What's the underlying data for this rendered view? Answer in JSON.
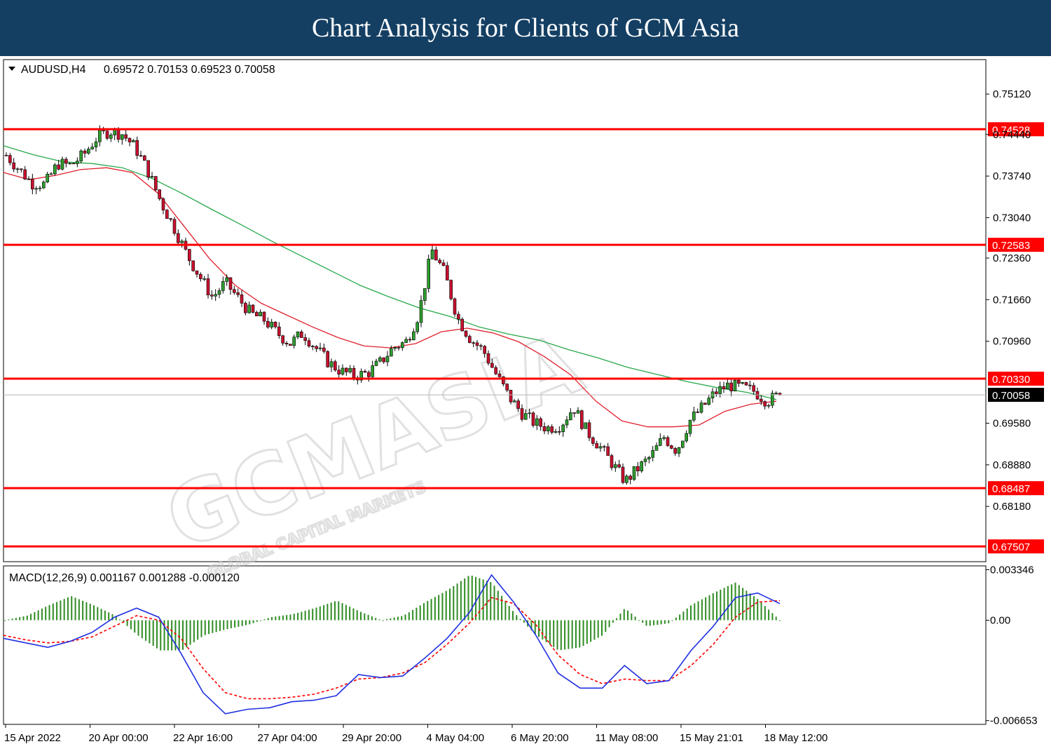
{
  "banner_title": "Chart Analysis for Clients of GCM Asia",
  "chart_data": [
    {
      "type": "candlestick",
      "title": "AUDUSD,H4",
      "ohlc_readout": "0.69572 0.70153 0.69523 0.70058",
      "ylim": [
        0.6725,
        0.757
      ],
      "ytick_labels": [
        "0.75120",
        "0.74440",
        "0.73740",
        "0.73040",
        "0.72360",
        "0.71660",
        "0.70960",
        "0.69580",
        "0.68880",
        "0.68180"
      ],
      "ytick_values": [
        0.7512,
        0.7444,
        0.7374,
        0.7304,
        0.7236,
        0.7166,
        0.7096,
        0.6958,
        0.6888,
        0.6818
      ],
      "xtick_labels": [
        "15 Apr 2022",
        "20 Apr 00:00",
        "22 Apr 16:00",
        "27 Apr 04:00",
        "29 Apr 20:00",
        "4 May 04:00",
        "6 May 20:00",
        "11 May 08:00",
        "15 May 21:01",
        "18 May 12:00"
      ],
      "horizontal_levels": [
        {
          "label": "0.74528",
          "value": 0.74528,
          "color": "#ff0000"
        },
        {
          "label": "0.72583",
          "value": 0.72583,
          "color": "#ff0000"
        },
        {
          "label": "0.70330",
          "value": 0.7033,
          "color": "#ff0000"
        },
        {
          "label": "0.68487",
          "value": 0.68487,
          "color": "#ff0000"
        },
        {
          "label": "0.67507",
          "value": 0.67507,
          "color": "#ff0000"
        }
      ],
      "current_price": {
        "label": "0.70058",
        "value": 0.70058
      },
      "anchors": [
        0.7409,
        0.7385,
        0.7362,
        0.736,
        0.7395,
        0.7392,
        0.741,
        0.7438,
        0.745,
        0.7445,
        0.7422,
        0.7382,
        0.733,
        0.7288,
        0.7242,
        0.7205,
        0.717,
        0.7195,
        0.7168,
        0.7142,
        0.7132,
        0.711,
        0.7092,
        0.711,
        0.7085,
        0.706,
        0.7045,
        0.7038,
        0.7042,
        0.706,
        0.7085,
        0.7095,
        0.7142,
        0.725,
        0.721,
        0.7135,
        0.71,
        0.708,
        0.704,
        0.7002,
        0.6975,
        0.6958,
        0.695,
        0.6955,
        0.6985,
        0.6945,
        0.692,
        0.689,
        0.686,
        0.6882,
        0.6902,
        0.6935,
        0.6912,
        0.6962,
        0.6985,
        0.701,
        0.7022,
        0.7018,
        0.7012,
        0.6995,
        0.7006
      ],
      "ema_red": [
        0.738,
        0.7368,
        0.7375,
        0.7385,
        0.7388,
        0.738,
        0.7345,
        0.729,
        0.7235,
        0.719,
        0.716,
        0.714,
        0.712,
        0.7102,
        0.7088,
        0.7085,
        0.7092,
        0.7112,
        0.7118,
        0.711,
        0.7095,
        0.707,
        0.704,
        0.6995,
        0.6962,
        0.6952,
        0.6952,
        0.6955,
        0.6978,
        0.699,
        0.6995
      ],
      "ema_green": [
        0.7425,
        0.741,
        0.7398,
        0.7395,
        0.7388,
        0.737,
        0.7345,
        0.7318,
        0.7292,
        0.7265,
        0.724,
        0.7215,
        0.719,
        0.717,
        0.7152,
        0.7138,
        0.712,
        0.7108,
        0.7098,
        0.7082,
        0.7068,
        0.7052,
        0.704,
        0.7028,
        0.7018,
        0.701,
        0.6998
      ],
      "ma_colors": {
        "fast": "#e0202c",
        "slow": "#27a84a"
      }
    },
    {
      "type": "macd",
      "title": "MACD(12,26,9) 0.001167 0.001288 -0.000120",
      "ylim": [
        -0.0069,
        0.0036
      ],
      "ytick_labels": [
        "0.003346",
        "0.00",
        "-0.006653"
      ],
      "ytick_values": [
        0.003346,
        0.0,
        -0.006653
      ],
      "macd_line": [
        -0.0012,
        -0.0015,
        -0.0018,
        -0.0014,
        -0.0008,
        0.0002,
        0.0008,
        0.0002,
        -0.0022,
        -0.0048,
        -0.0062,
        -0.0059,
        -0.0058,
        -0.0054,
        -0.0053,
        -0.005,
        -0.0036,
        -0.0038,
        -0.0037,
        -0.0025,
        -0.0012,
        0.0005,
        0.003,
        0.0012,
        -0.001,
        -0.0035,
        -0.0045,
        -0.0045,
        -0.003,
        -0.0042,
        -0.004,
        -0.002,
        -0.0004,
        0.0015,
        0.0018,
        0.0011
      ],
      "signal_line": [
        -0.001,
        -0.0013,
        -0.0015,
        -0.0014,
        -0.0011,
        -0.0004,
        0.0003,
        0.0,
        -0.0012,
        -0.0032,
        -0.0048,
        -0.0052,
        -0.0052,
        -0.0051,
        -0.0049,
        -0.0045,
        -0.0039,
        -0.0038,
        -0.0035,
        -0.0028,
        -0.0016,
        -0.0002,
        0.0015,
        0.0011,
        -0.0003,
        -0.0023,
        -0.0036,
        -0.0042,
        -0.0039,
        -0.004,
        -0.004,
        -0.003,
        -0.0016,
        0.0002,
        0.0012,
        0.0013
      ],
      "histogram_profile": [
        0.0,
        0.0003,
        0.001,
        0.0016,
        0.001,
        0.0003,
        -0.001,
        -0.002,
        -0.002,
        -0.001,
        -0.0006,
        -0.0003,
        0.0002,
        0.0004,
        0.0008,
        0.0013,
        0.0006,
        0.0,
        0.0003,
        0.0012,
        0.002,
        0.003,
        0.0025,
        0.0005,
        -0.001,
        -0.002,
        -0.0018,
        -0.001,
        0.0008,
        -0.0004,
        -0.0002,
        0.001,
        0.0018,
        0.0025,
        0.0014,
        0.0
      ],
      "colors": {
        "macd": "#1f2fe0",
        "signal": "#ff0000",
        "histogram": "#2e8b22"
      }
    }
  ],
  "watermark": {
    "main": "GCMASIA",
    "sub": "GLOBAL CAPITAL MARKETS"
  }
}
